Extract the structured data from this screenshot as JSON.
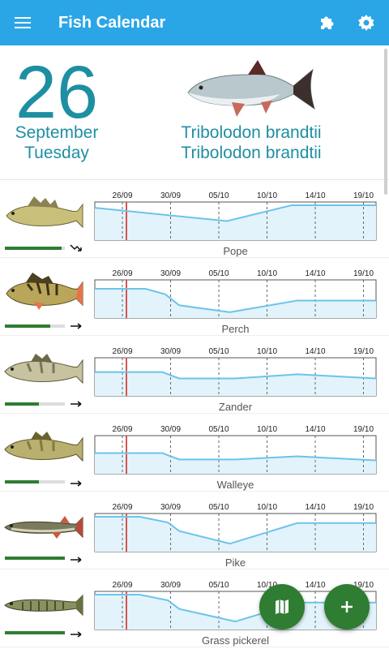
{
  "app": {
    "title": "Fish Calendar",
    "icons": {
      "menu": "menu-icon",
      "plugins": "puzzle-icon",
      "settings": "gear-icon"
    },
    "accent": "#2aa6e6",
    "text_accent": "#1e8fa2",
    "fab_color": "#2e7d32"
  },
  "date": {
    "day": "26",
    "month": "September",
    "weekday": "Tuesday"
  },
  "featured": {
    "name_line1": "Tribolodon brandtii",
    "name_line2": "Tribolodon brandtii"
  },
  "axis_ticks": [
    "26/09",
    "30/09",
    "05/10",
    "10/10",
    "14/10",
    "19/10"
  ],
  "fish": [
    {
      "name": "Pope",
      "activity": 0.95,
      "trend": "down"
    },
    {
      "name": "Perch",
      "activity": 0.75,
      "trend": "flat"
    },
    {
      "name": "Zander",
      "activity": 0.57,
      "trend": "flat"
    },
    {
      "name": "Walleye",
      "activity": 0.57,
      "trend": "flat"
    },
    {
      "name": "Pike",
      "activity": 1.0,
      "trend": "flat"
    },
    {
      "name": "Grass pickerel",
      "activity": 1.0,
      "trend": "flat"
    }
  ],
  "fabs": {
    "map": "map-icon",
    "add": "plus-icon"
  }
}
